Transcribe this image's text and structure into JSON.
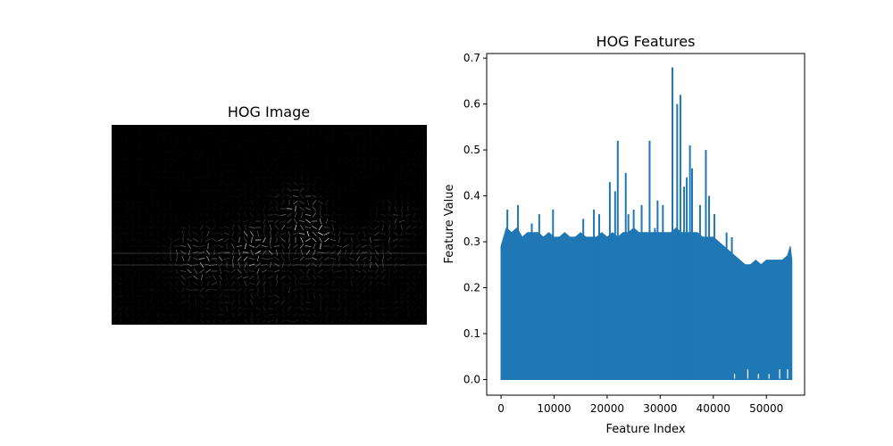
{
  "chart_data": [
    {
      "type": "image",
      "title": "HOG Image"
    },
    {
      "type": "line",
      "title": "HOG Features",
      "xlabel": "Feature Index",
      "ylabel": "Feature Value",
      "xlim": [
        -2700,
        57200
      ],
      "ylim": [
        -0.034,
        0.71
      ],
      "xticks": [
        0,
        10000,
        20000,
        30000,
        40000,
        50000
      ],
      "yticks": [
        0.0,
        0.1,
        0.2,
        0.3,
        0.4,
        0.5,
        0.6,
        0.7
      ],
      "grid": false,
      "series": [
        {
          "color": "#1f77b4",
          "x_range": [
            0,
            54800
          ],
          "envelope_min": [
            [
              0,
              0.0
            ],
            [
              54800,
              0.0
            ]
          ],
          "envelope_max": [
            [
              0,
              0.29
            ],
            [
              1000,
              0.33
            ],
            [
              2000,
              0.32
            ],
            [
              3000,
              0.33
            ],
            [
              4000,
              0.31
            ],
            [
              5000,
              0.32
            ],
            [
              6000,
              0.32
            ],
            [
              7000,
              0.32
            ],
            [
              8000,
              0.31
            ],
            [
              9000,
              0.32
            ],
            [
              10000,
              0.31
            ],
            [
              11000,
              0.31
            ],
            [
              12000,
              0.32
            ],
            [
              13000,
              0.31
            ],
            [
              14000,
              0.31
            ],
            [
              15000,
              0.32
            ],
            [
              16000,
              0.31
            ],
            [
              17000,
              0.31
            ],
            [
              18000,
              0.31
            ],
            [
              19000,
              0.32
            ],
            [
              20000,
              0.31
            ],
            [
              21000,
              0.32
            ],
            [
              22000,
              0.31
            ],
            [
              23000,
              0.32
            ],
            [
              24000,
              0.32
            ],
            [
              25000,
              0.33
            ],
            [
              26000,
              0.32
            ],
            [
              27000,
              0.32
            ],
            [
              28000,
              0.32
            ],
            [
              29000,
              0.32
            ],
            [
              30000,
              0.32
            ],
            [
              31000,
              0.32
            ],
            [
              32000,
              0.32
            ],
            [
              33000,
              0.33
            ],
            [
              34000,
              0.32
            ],
            [
              35000,
              0.32
            ],
            [
              36000,
              0.32
            ],
            [
              37000,
              0.32
            ],
            [
              38000,
              0.31
            ],
            [
              39000,
              0.31
            ],
            [
              40000,
              0.31
            ],
            [
              41000,
              0.3
            ],
            [
              42000,
              0.29
            ],
            [
              43000,
              0.28
            ],
            [
              44000,
              0.27
            ],
            [
              45000,
              0.26
            ],
            [
              46000,
              0.25
            ],
            [
              47000,
              0.25
            ],
            [
              48000,
              0.26
            ],
            [
              49000,
              0.25
            ],
            [
              50000,
              0.26
            ],
            [
              51000,
              0.26
            ],
            [
              52000,
              0.26
            ],
            [
              53000,
              0.26
            ],
            [
              54000,
              0.27
            ],
            [
              54500,
              0.29
            ],
            [
              54800,
              0.26
            ]
          ],
          "spikes": [
            [
              1200,
              0.37
            ],
            [
              3200,
              0.38
            ],
            [
              5800,
              0.34
            ],
            [
              7200,
              0.36
            ],
            [
              9800,
              0.37
            ],
            [
              15500,
              0.35
            ],
            [
              17500,
              0.37
            ],
            [
              18500,
              0.36
            ],
            [
              20500,
              0.43
            ],
            [
              21500,
              0.41
            ],
            [
              22000,
              0.52
            ],
            [
              23500,
              0.45
            ],
            [
              24000,
              0.36
            ],
            [
              25000,
              0.37
            ],
            [
              26500,
              0.38
            ],
            [
              28000,
              0.52
            ],
            [
              29000,
              0.33
            ],
            [
              29500,
              0.39
            ],
            [
              30500,
              0.38
            ],
            [
              32300,
              0.68
            ],
            [
              33200,
              0.6
            ],
            [
              33800,
              0.62
            ],
            [
              34500,
              0.42
            ],
            [
              35000,
              0.44
            ],
            [
              35600,
              0.51
            ],
            [
              36000,
              0.46
            ],
            [
              37500,
              0.38
            ],
            [
              38600,
              0.5
            ],
            [
              39200,
              0.4
            ],
            [
              40200,
              0.36
            ],
            [
              42500,
              0.32
            ],
            [
              43500,
              0.31
            ]
          ],
          "low_floor_notches": [
            [
              44000,
              0.02
            ],
            [
              46500,
              0.03
            ],
            [
              48500,
              0.02
            ],
            [
              50500,
              0.02
            ],
            [
              52500,
              0.03
            ],
            [
              54000,
              0.03
            ]
          ]
        }
      ]
    }
  ]
}
